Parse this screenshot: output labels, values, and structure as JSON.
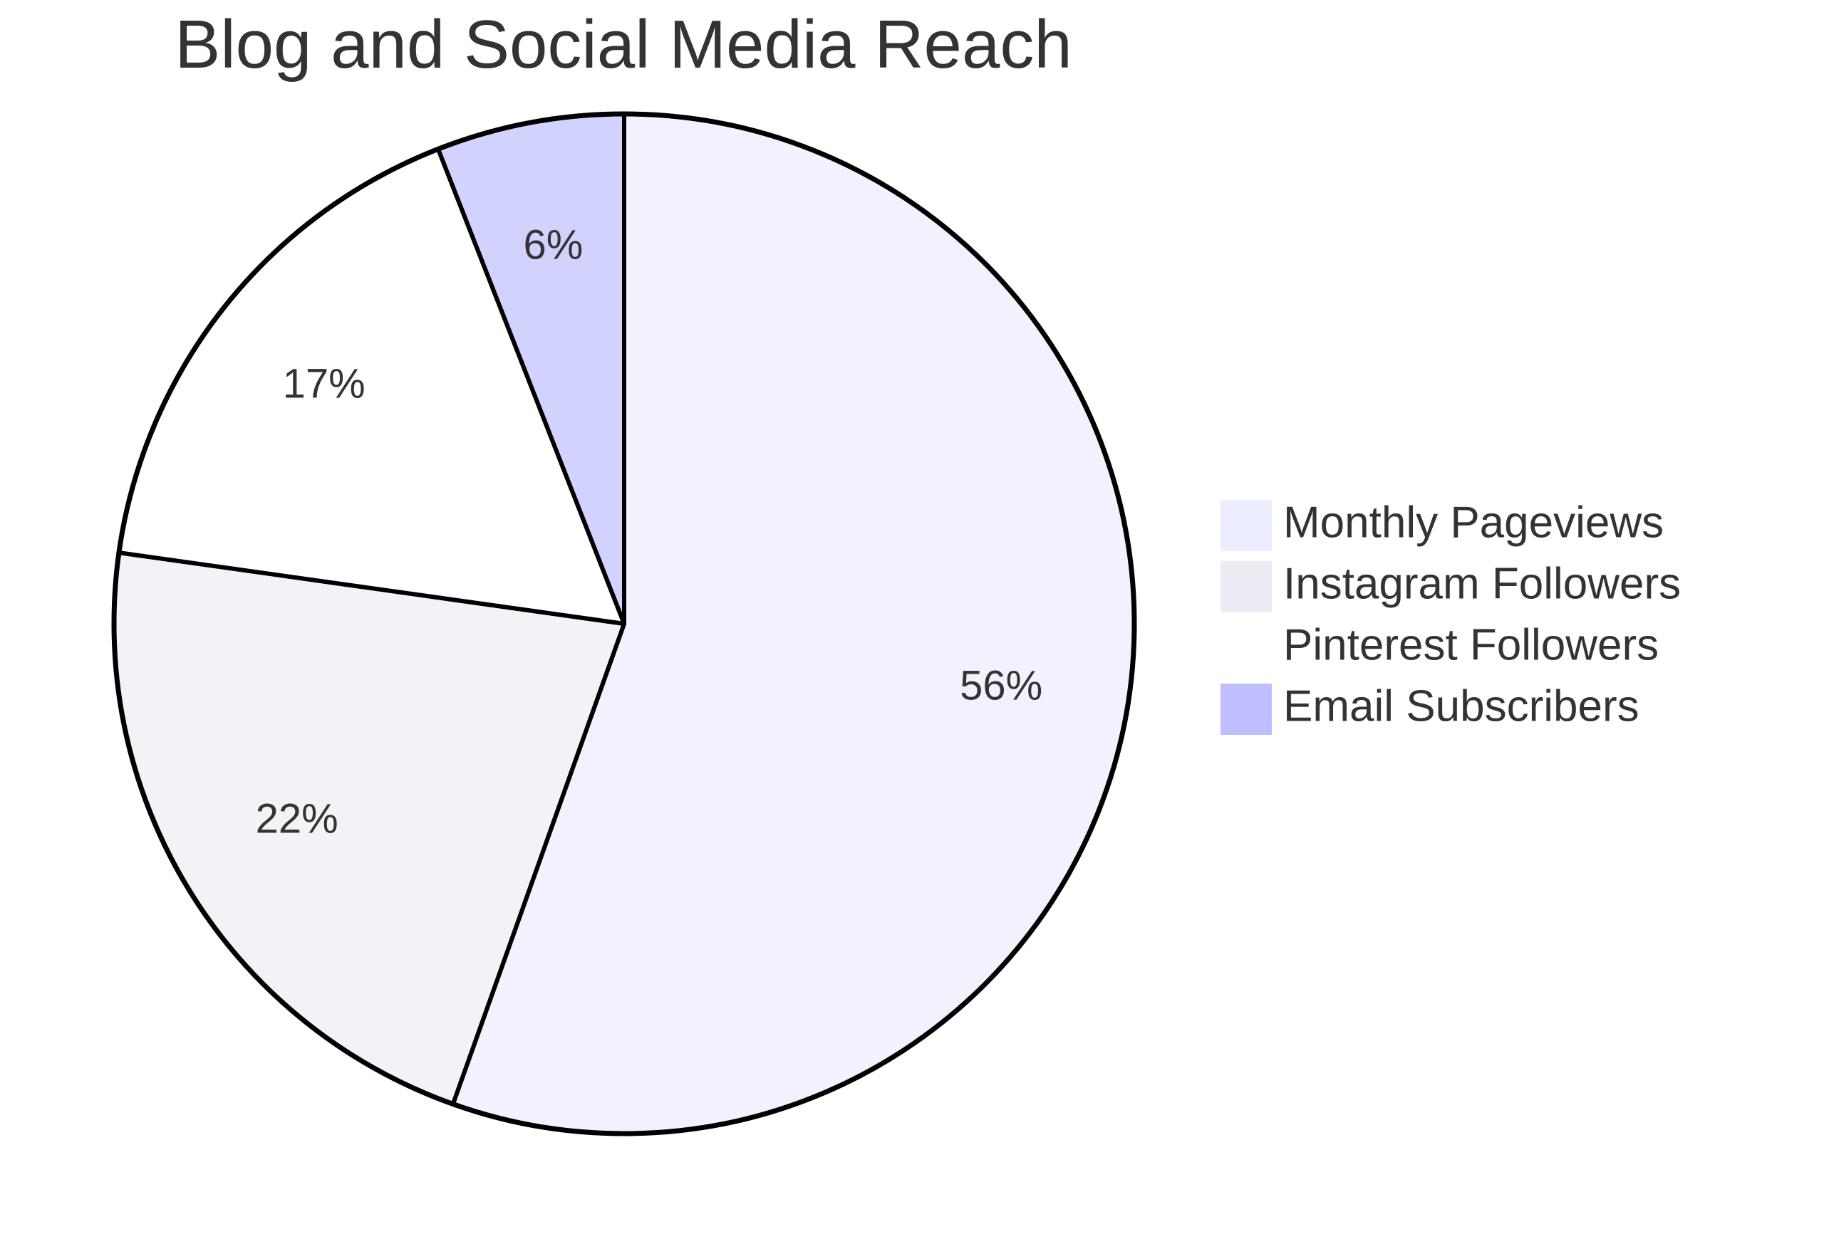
{
  "chart_data": {
    "type": "pie",
    "title": "Blog and Social Media Reach",
    "slices": [
      {
        "label": "Monthly Pageviews",
        "percent_label": "56%",
        "value": 56,
        "color": "#ECECFF"
      },
      {
        "label": "Instagram Followers",
        "percent_label": "22%",
        "value": 22,
        "color": "#ECECF4"
      },
      {
        "label": "Pinterest Followers",
        "percent_label": "17%",
        "value": 17,
        "color": "#FFFFFF"
      },
      {
        "label": "Email Subscribers",
        "percent_label": "6%",
        "value": 6,
        "color": "#BFBFFF"
      }
    ],
    "slice_fill_opacity": 0.7,
    "outline_color": "#000000",
    "legend_position": "right"
  }
}
